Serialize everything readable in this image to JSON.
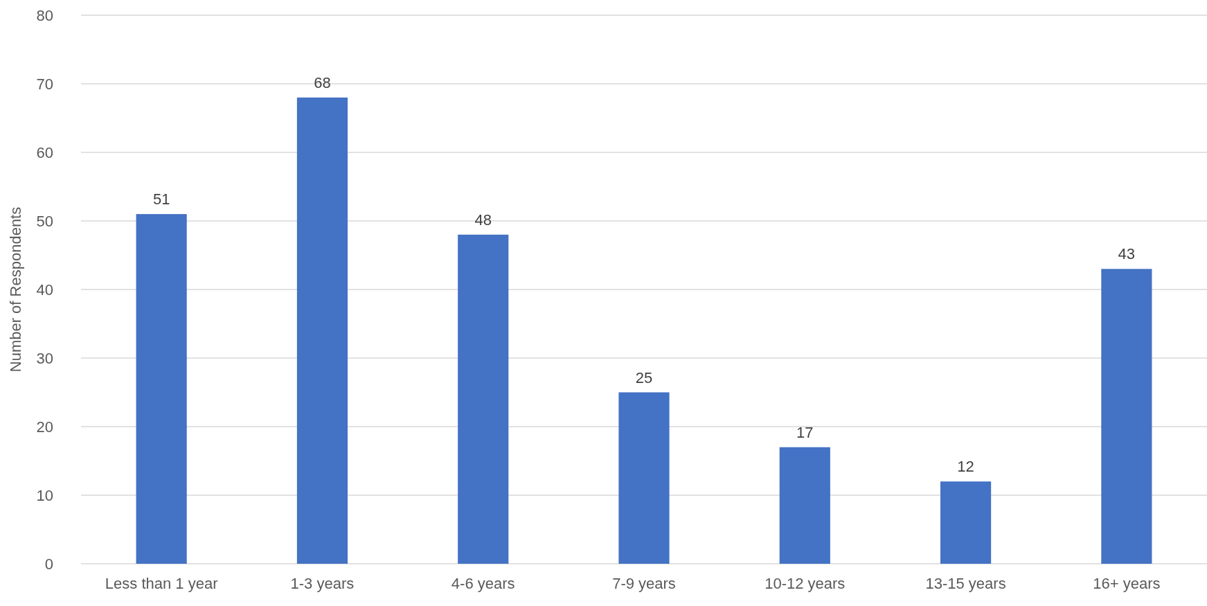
{
  "chart_data": {
    "type": "bar",
    "ylabel": "Number of Respondents",
    "categories": [
      "Less than 1 year",
      "1-3 years",
      "4-6 years",
      "7-9 years",
      "10-12 years",
      "13-15 years",
      "16+ years"
    ],
    "values": [
      51,
      68,
      48,
      25,
      17,
      12,
      43
    ],
    "color": "#4472c4",
    "ylim": [
      0,
      80
    ],
    "yticks": [
      0,
      10,
      20,
      30,
      40,
      50,
      60,
      70,
      80
    ],
    "grid": "y",
    "data_labels": true
  }
}
